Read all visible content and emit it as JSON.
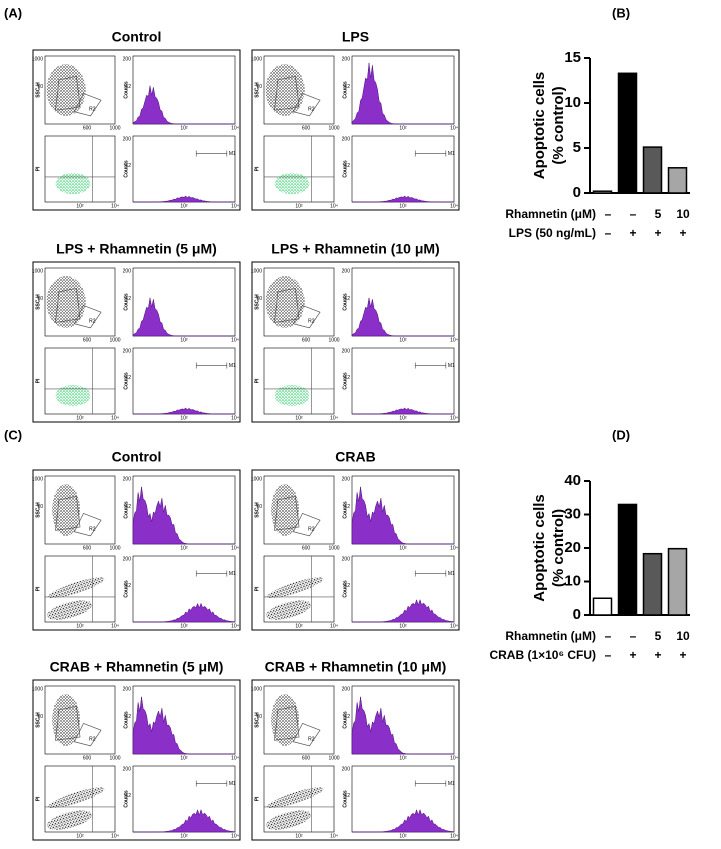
{
  "figure": {
    "flow_A": {
      "label": "(A)",
      "titles": [
        "Control",
        "LPS",
        "LPS + Rhamnetin (5 μM)",
        "LPS + Rhamnetin (10 μM)"
      ]
    },
    "flow_C": {
      "label": "(C)",
      "titles": [
        "Control",
        "CRAB",
        "CRAB + Rhamnetin (5 μM)",
        "CRAB + Rhamnetin (10 μM)"
      ]
    },
    "flow_axis_labels": {
      "ssc": "SSC-H",
      "counts": "Counts",
      "pi": "PI",
      "gate": "R2",
      "marker": "M1"
    },
    "flow_ticks": {
      "scatter_y": [
        "1000",
        "60"
      ],
      "scatter_x": [
        "600",
        "1000"
      ],
      "hist_y": [
        "200",
        "12"
      ],
      "log_x": [
        "10²",
        "10⁴"
      ]
    }
  },
  "chart_data": [
    {
      "type": "bar",
      "panel_label": "(B)",
      "ylabel": [
        "Apoptotic cells",
        "(% control)"
      ],
      "categories": [
        null,
        null,
        null,
        null
      ],
      "values": [
        0.2,
        13.3,
        5.1,
        2.8
      ],
      "colors": [
        "#ffffff",
        "#000000",
        "#595959",
        "#a6a6a6"
      ],
      "edgecolor": "#000000",
      "ylim": [
        0,
        15
      ],
      "yticks": [
        0,
        5,
        10,
        15
      ],
      "conditions": [
        {
          "name": "Rhamnetin (μM)",
          "labels": [
            "–",
            "–",
            "5",
            "10"
          ]
        },
        {
          "name": "LPS (50 ng/mL)",
          "labels": [
            "–",
            "+",
            "+",
            "+"
          ]
        }
      ]
    },
    {
      "type": "bar",
      "panel_label": "(D)",
      "ylabel": [
        "Apoptotic cells",
        "(% control)"
      ],
      "categories": [
        null,
        null,
        null,
        null
      ],
      "values": [
        5,
        33,
        18.3,
        19.8
      ],
      "colors": [
        "#ffffff",
        "#000000",
        "#595959",
        "#a6a6a6"
      ],
      "edgecolor": "#000000",
      "ylim": [
        0,
        40
      ],
      "yticks": [
        0,
        10,
        20,
        30,
        40
      ],
      "conditions": [
        {
          "name": "Rhamnetin (μM)",
          "labels": [
            "–",
            "–",
            "5",
            "10"
          ]
        },
        {
          "name": "CRAB (1×10⁶ CFU)",
          "labels": [
            "–",
            "+",
            "+",
            "+"
          ]
        }
      ]
    }
  ]
}
